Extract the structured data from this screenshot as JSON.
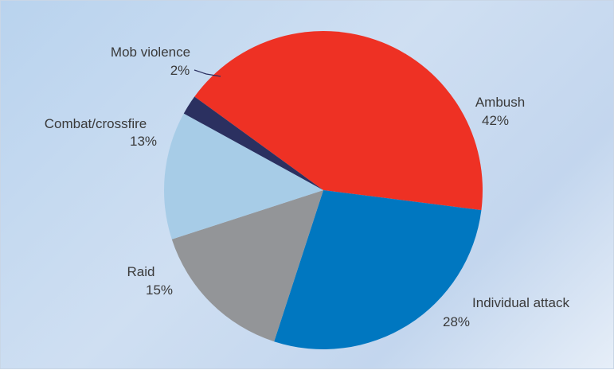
{
  "chart_data": {
    "type": "pie",
    "slices": [
      {
        "label": "Ambush",
        "value": 42,
        "value_text": "42%",
        "color": "#ee3124"
      },
      {
        "label": "Individual attack",
        "value": 28,
        "value_text": "28%",
        "color": "#0077c0"
      },
      {
        "label": "Raid",
        "value": 15,
        "value_text": "15%",
        "color": "#939598"
      },
      {
        "label": "Combat/crossfire",
        "value": 13,
        "value_text": "13%",
        "color": "#a7cce7"
      },
      {
        "label": "Mob violence",
        "value": 2,
        "value_text": "2%",
        "color": "#2b3060"
      }
    ]
  }
}
